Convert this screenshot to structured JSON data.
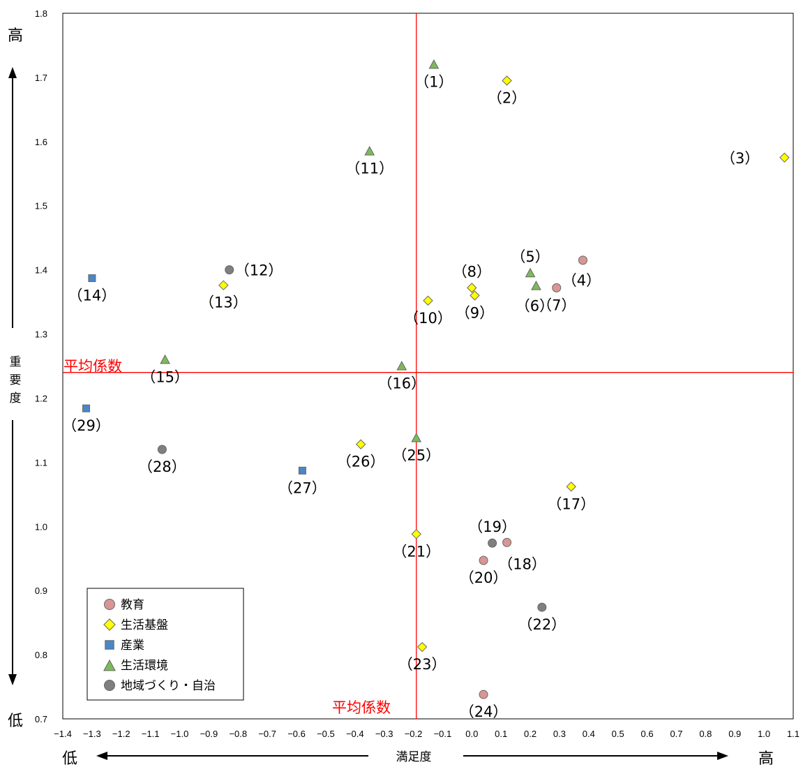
{
  "chart_data": {
    "type": "scatter",
    "xlabel": "満足度",
    "ylabel": "重要度",
    "xlim": [
      -1.4,
      1.1
    ],
    "ylim": [
      0.7,
      1.8
    ],
    "xticks": [
      -1.4,
      -1.3,
      -1.2,
      -1.1,
      -1.0,
      -0.9,
      -0.8,
      -0.7,
      -0.6,
      -0.5,
      -0.4,
      -0.3,
      -0.2,
      -0.1,
      0.0,
      0.1,
      0.2,
      0.3,
      0.4,
      0.5,
      0.6,
      0.7,
      0.8,
      0.9,
      1.0,
      1.1
    ],
    "xtick_labels": [
      "−1.4",
      "−1.3",
      "−1.2",
      "−1.1",
      "−1.0",
      "−0.9",
      "−0.8",
      "−0.7",
      "−0.6",
      "−0.5",
      "−0.4",
      "−0.3",
      "−0.2",
      "−0.1",
      "0.0",
      "0.1",
      "0.2",
      "0.3",
      "0.4",
      "0.5",
      "0.6",
      "0.7",
      "0.8",
      "0.9",
      "1.0",
      "1.1"
    ],
    "yticks": [
      0.7,
      0.8,
      0.9,
      1.0,
      1.1,
      1.2,
      1.3,
      1.4,
      1.5,
      1.6,
      1.7,
      1.8
    ],
    "ytick_labels": [
      "0.7",
      "0.8",
      "0.9",
      "1.0",
      "1.1",
      "1.2",
      "1.3",
      "1.4",
      "1.5",
      "1.6",
      "1.7",
      "1.8"
    ],
    "grid": false,
    "legend_position": "bottom-left",
    "high_label": "高",
    "low_label": "低",
    "reference_lines": {
      "label": "平均係数",
      "x": -0.19,
      "y": 1.24,
      "color": "#ff0000"
    },
    "categories": [
      {
        "name": "教育",
        "marker": "circle",
        "color": "#d99694"
      },
      {
        "name": "生活基盤",
        "marker": "diamond",
        "color": "#ffff00"
      },
      {
        "name": "産業",
        "marker": "square",
        "color": "#4a86c8"
      },
      {
        "name": "生活環境",
        "marker": "triangle",
        "color": "#7cba5a"
      },
      {
        "name": "地域づくり・自治",
        "marker": "circle",
        "color": "#7f7f7f"
      }
    ],
    "points": [
      {
        "label": "（1）",
        "cat": 3,
        "x": -0.13,
        "y": 1.72,
        "lp": "below"
      },
      {
        "label": "（2）",
        "cat": 1,
        "x": 0.12,
        "y": 1.695,
        "lp": "below"
      },
      {
        "label": "（3）",
        "cat": 1,
        "x": 1.07,
        "y": 1.575,
        "lp": "left"
      },
      {
        "label": "（4）",
        "cat": 0,
        "x": 0.38,
        "y": 1.415,
        "lp": "belowleft"
      },
      {
        "label": "（5）",
        "cat": 3,
        "x": 0.2,
        "y": 1.395,
        "lp": "above"
      },
      {
        "label": "（6）",
        "cat": 3,
        "x": 0.22,
        "y": 1.375,
        "lp": "belowleft"
      },
      {
        "label": "（7）",
        "cat": 0,
        "x": 0.29,
        "y": 1.372,
        "lp": "below"
      },
      {
        "label": "（8）",
        "cat": 1,
        "x": 0.0,
        "y": 1.372,
        "lp": "above"
      },
      {
        "label": "（9）",
        "cat": 1,
        "x": 0.01,
        "y": 1.36,
        "lp": "below"
      },
      {
        "label": "（10）",
        "cat": 1,
        "x": -0.15,
        "y": 1.352,
        "lp": "below"
      },
      {
        "label": "（11）",
        "cat": 3,
        "x": -0.35,
        "y": 1.585,
        "lp": "below"
      },
      {
        "label": "（12）",
        "cat": 4,
        "x": -0.83,
        "y": 1.4,
        "lp": "right"
      },
      {
        "label": "（13）",
        "cat": 1,
        "x": -0.85,
        "y": 1.376,
        "lp": "below"
      },
      {
        "label": "（14）",
        "cat": 2,
        "x": -1.3,
        "y": 1.387,
        "lp": "below"
      },
      {
        "label": "（15）",
        "cat": 3,
        "x": -1.05,
        "y": 1.26,
        "lp": "below"
      },
      {
        "label": "（16）",
        "cat": 3,
        "x": -0.24,
        "y": 1.25,
        "lp": "below"
      },
      {
        "label": "（17）",
        "cat": 1,
        "x": 0.34,
        "y": 1.062,
        "lp": "below"
      },
      {
        "label": "（18）",
        "cat": 0,
        "x": 0.12,
        "y": 0.975,
        "lp": "belowright"
      },
      {
        "label": "（19）",
        "cat": 4,
        "x": 0.07,
        "y": 0.974,
        "lp": "above"
      },
      {
        "label": "（20）",
        "cat": 0,
        "x": 0.04,
        "y": 0.947,
        "lp": "below"
      },
      {
        "label": "（21）",
        "cat": 1,
        "x": -0.19,
        "y": 0.988,
        "lp": "below"
      },
      {
        "label": "（22）",
        "cat": 4,
        "x": 0.24,
        "y": 0.874,
        "lp": "below"
      },
      {
        "label": "（23）",
        "cat": 1,
        "x": -0.17,
        "y": 0.812,
        "lp": "below"
      },
      {
        "label": "（24）",
        "cat": 0,
        "x": 0.04,
        "y": 0.738,
        "lp": "below"
      },
      {
        "label": "（25）",
        "cat": 3,
        "x": -0.19,
        "y": 1.138,
        "lp": "below"
      },
      {
        "label": "（26）",
        "cat": 1,
        "x": -0.38,
        "y": 1.128,
        "lp": "below"
      },
      {
        "label": "（27）",
        "cat": 2,
        "x": -0.58,
        "y": 1.087,
        "lp": "below"
      },
      {
        "label": "（28）",
        "cat": 4,
        "x": -1.06,
        "y": 1.12,
        "lp": "below"
      },
      {
        "label": "（29）",
        "cat": 2,
        "x": -1.32,
        "y": 1.184,
        "lp": "below"
      }
    ]
  }
}
